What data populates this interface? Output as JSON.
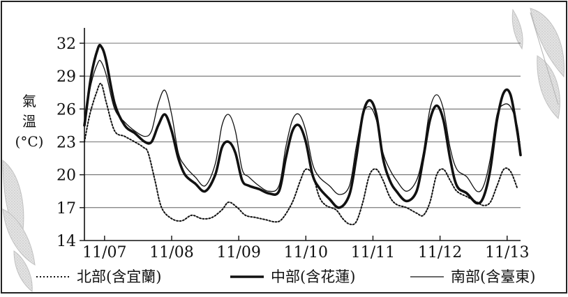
{
  "chart_data": {
    "type": "line",
    "title": "",
    "ylabel_lines": [
      "氣",
      "溫",
      "(°C)"
    ],
    "ylim": [
      14,
      32
    ],
    "yticks": [
      14,
      17,
      20,
      23,
      26,
      29,
      32
    ],
    "x_tick_labels": [
      "11/07",
      "11/08",
      "11/09",
      "11/10",
      "11/11",
      "11/12",
      "11/13"
    ],
    "x_tick_positions": [
      0.3,
      1.3,
      2.3,
      3.3,
      4.3,
      5.3,
      6.3
    ],
    "xlim": [
      0,
      6.5
    ],
    "grid": "horizontal",
    "legend_position": "bottom",
    "series": [
      {
        "name": "北部(含宜蘭)",
        "style": "dotted",
        "x": [
          0.0,
          0.08,
          0.18,
          0.25,
          0.33,
          0.45,
          0.6,
          0.75,
          0.88,
          0.95,
          1.05,
          1.15,
          1.3,
          1.45,
          1.6,
          1.75,
          1.9,
          2.05,
          2.15,
          2.28,
          2.4,
          2.55,
          2.7,
          2.85,
          2.95,
          3.1,
          3.22,
          3.3,
          3.4,
          3.5,
          3.6,
          3.75,
          3.85,
          3.95,
          4.05,
          4.15,
          4.25,
          4.35,
          4.45,
          4.55,
          4.65,
          4.8,
          4.95,
          5.05,
          5.15,
          5.25,
          5.35,
          5.45,
          5.55,
          5.7,
          5.85,
          5.95,
          6.05,
          6.15,
          6.25,
          6.35,
          6.45
        ],
        "values": [
          23.0,
          25.5,
          27.5,
          28.3,
          26.5,
          24.0,
          23.5,
          23.0,
          22.5,
          22.0,
          19.5,
          17.0,
          16.0,
          15.8,
          16.3,
          16.0,
          16.1,
          16.8,
          17.5,
          17.0,
          16.3,
          16.1,
          15.9,
          15.7,
          16.0,
          17.5,
          19.5,
          20.5,
          20.0,
          18.0,
          17.2,
          16.8,
          16.0,
          15.5,
          15.7,
          17.5,
          20.0,
          20.5,
          19.5,
          18.0,
          17.3,
          17.0,
          16.5,
          16.3,
          17.5,
          20.0,
          20.5,
          19.5,
          18.5,
          18.0,
          17.5,
          17.2,
          17.5,
          19.0,
          20.5,
          20.3,
          18.8
        ]
      },
      {
        "name": "中部(含花蓮)",
        "style": "thick",
        "x": [
          0.0,
          0.1,
          0.2,
          0.25,
          0.32,
          0.45,
          0.6,
          0.75,
          0.9,
          1.0,
          1.1,
          1.2,
          1.3,
          1.4,
          1.5,
          1.65,
          1.8,
          1.95,
          2.05,
          2.15,
          2.25,
          2.35,
          2.45,
          2.6,
          2.75,
          2.9,
          3.0,
          3.1,
          3.2,
          3.3,
          3.4,
          3.5,
          3.65,
          3.8,
          3.95,
          4.05,
          4.15,
          4.25,
          4.35,
          4.45,
          4.55,
          4.65,
          4.8,
          4.95,
          5.05,
          5.15,
          5.25,
          5.35,
          5.45,
          5.55,
          5.7,
          5.85,
          5.95,
          6.05,
          6.15,
          6.25,
          6.35,
          6.45,
          6.5
        ],
        "values": [
          24.5,
          29.0,
          31.5,
          31.7,
          30.5,
          26.5,
          24.5,
          23.8,
          23.0,
          23.0,
          24.5,
          25.5,
          24.0,
          21.5,
          20.0,
          19.2,
          18.5,
          20.0,
          22.5,
          23.0,
          22.0,
          19.5,
          19.0,
          18.7,
          18.3,
          18.5,
          21.5,
          24.0,
          24.5,
          23.0,
          20.0,
          18.8,
          17.8,
          17.0,
          18.2,
          21.5,
          25.5,
          26.8,
          25.5,
          21.5,
          19.5,
          18.5,
          17.6,
          18.5,
          21.5,
          25.0,
          26.3,
          25.0,
          21.5,
          19.0,
          18.3,
          17.4,
          18.0,
          20.5,
          25.0,
          27.5,
          27.3,
          24.0,
          21.8
        ]
      },
      {
        "name": "南部(含臺東)",
        "style": "thin",
        "x": [
          0.0,
          0.1,
          0.2,
          0.25,
          0.33,
          0.45,
          0.6,
          0.75,
          0.9,
          1.0,
          1.1,
          1.2,
          1.3,
          1.4,
          1.5,
          1.65,
          1.8,
          1.95,
          2.05,
          2.15,
          2.25,
          2.35,
          2.45,
          2.6,
          2.75,
          2.9,
          3.0,
          3.1,
          3.2,
          3.3,
          3.4,
          3.5,
          3.65,
          3.8,
          3.95,
          4.05,
          4.15,
          4.25,
          4.35,
          4.45,
          4.55,
          4.65,
          4.8,
          4.95,
          5.05,
          5.15,
          5.25,
          5.35,
          5.45,
          5.55,
          5.7,
          5.85,
          5.95,
          6.05,
          6.15,
          6.25,
          6.35,
          6.45,
          6.5
        ],
        "values": [
          24.8,
          28.3,
          30.2,
          30.3,
          29.0,
          26.0,
          24.8,
          24.0,
          23.5,
          24.0,
          26.5,
          27.7,
          25.5,
          22.0,
          20.8,
          19.8,
          19.0,
          21.0,
          24.5,
          25.5,
          24.0,
          20.5,
          19.8,
          19.0,
          18.5,
          19.0,
          22.5,
          25.0,
          25.5,
          24.0,
          21.0,
          19.8,
          19.0,
          18.2,
          19.0,
          22.5,
          25.5,
          26.2,
          25.0,
          22.0,
          20.5,
          19.5,
          18.5,
          19.5,
          22.0,
          26.0,
          27.3,
          26.0,
          22.5,
          20.5,
          19.8,
          18.5,
          19.0,
          21.5,
          25.5,
          26.4,
          26.2,
          24.5,
          22.2
        ]
      }
    ]
  }
}
